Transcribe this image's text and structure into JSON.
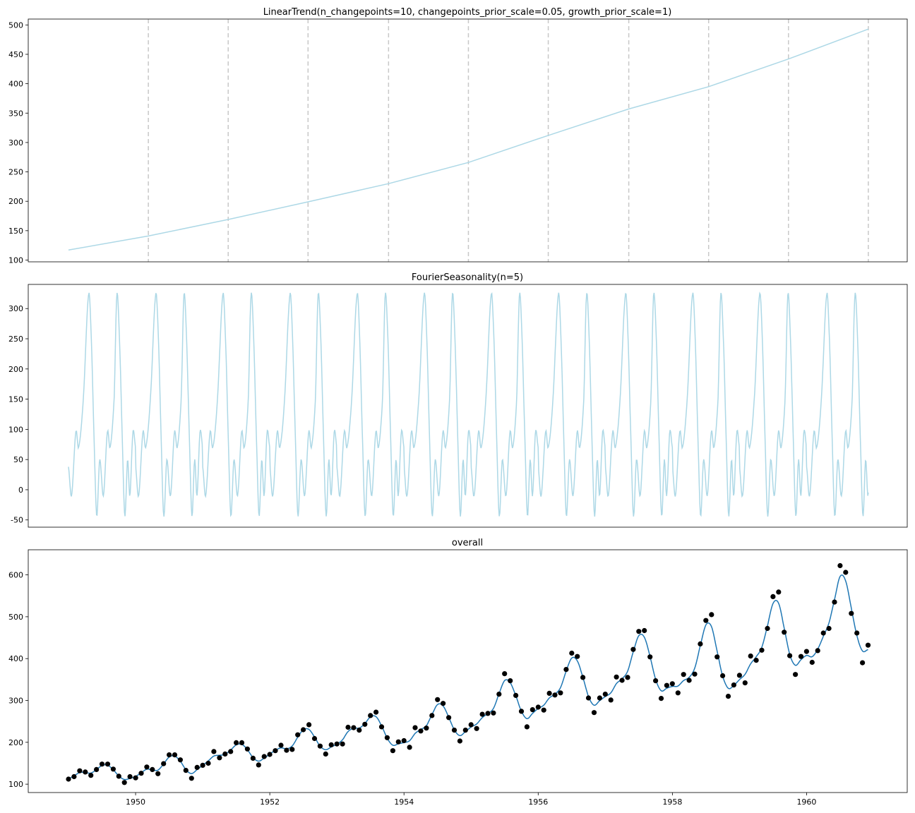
{
  "chart_data": [
    {
      "type": "line",
      "title": "LinearTrend(n_changepoints=10, changepoints_prior_scale=0.05, growth_prior_scale=1)",
      "ylim": [
        97,
        510
      ],
      "yticks": [
        100,
        150,
        200,
        250,
        300,
        350,
        400,
        450,
        500
      ],
      "xlim": [
        1948.4,
        1961.5
      ],
      "line_color": "#add8e6",
      "changepoint_color": "#c8c8c8",
      "changepoints": [
        1950.19,
        1951.38,
        1952.57,
        1953.77,
        1954.96,
        1956.15,
        1957.35,
        1958.54,
        1959.73,
        1960.92
      ],
      "series": [
        {
          "x": [
            1949.0,
            1950.19,
            1951.38,
            1952.57,
            1953.77,
            1954.96,
            1956.15,
            1957.35,
            1958.54,
            1959.73,
            1960.92
          ],
          "values": [
            117,
            141,
            169,
            199,
            230,
            266,
            312,
            357,
            395,
            442,
            493
          ]
        }
      ]
    },
    {
      "type": "line",
      "title": "FourierSeasonality(n=5)",
      "ylim": [
        -62,
        340
      ],
      "yticks": [
        -50,
        0,
        50,
        100,
        150,
        200,
        250,
        300
      ],
      "xlim": [
        1948.4,
        1961.5
      ],
      "line_color": "#add8e6",
      "period_years": 1,
      "x_start": 1949.0,
      "x_end": 1960.92,
      "cycle_profile": {
        "phase": [
          0.0,
          0.045,
          0.11,
          0.15,
          0.22,
          0.3,
          0.34,
          0.38,
          0.42,
          0.465,
          0.52,
          0.58,
          0.62,
          0.68,
          0.72,
          0.76,
          0.8,
          0.84,
          0.88,
          0.915,
          0.96,
          1.0
        ],
        "values": [
          38,
          -10,
          96,
          70,
          150,
          323,
          250,
          90,
          -44,
          50,
          -10,
          96,
          70,
          150,
          323,
          250,
          90,
          -44,
          50,
          -10,
          96,
          70
        ]
      }
    },
    {
      "type": "line",
      "title": "overall",
      "ylim": [
        80,
        660
      ],
      "yticks": [
        100,
        200,
        300,
        400,
        500,
        600
      ],
      "xlim": [
        1948.4,
        1961.5
      ],
      "xticks": [
        "1950",
        "1952",
        "1954",
        "1956",
        "1958",
        "1960"
      ],
      "xtick_values": [
        1950,
        1952,
        1954,
        1956,
        1958,
        1960
      ],
      "line_color": "#1f77b4",
      "point_color": "#000000",
      "series": [
        {
          "name": "observed",
          "x_start": 1949.0,
          "x_step": 0.08333,
          "values": [
            112,
            118,
            132,
            129,
            121,
            135,
            148,
            148,
            136,
            119,
            104,
            118,
            115,
            126,
            141,
            135,
            125,
            149,
            170,
            170,
            158,
            133,
            114,
            140,
            145,
            150,
            178,
            163,
            172,
            178,
            199,
            199,
            184,
            162,
            146,
            166,
            171,
            180,
            193,
            181,
            183,
            218,
            230,
            242,
            209,
            191,
            172,
            194,
            196,
            196,
            236,
            235,
            229,
            243,
            264,
            272,
            237,
            211,
            180,
            201,
            204,
            188,
            235,
            227,
            234,
            264,
            302,
            293,
            259,
            229,
            203,
            229,
            242,
            233,
            267,
            269,
            270,
            315,
            364,
            347,
            312,
            274,
            237,
            278,
            284,
            277,
            317,
            313,
            318,
            374,
            413,
            405,
            355,
            306,
            271,
            306,
            315,
            301,
            356,
            348,
            355,
            422,
            465,
            467,
            404,
            347,
            305,
            336,
            340,
            318,
            362,
            348,
            363,
            435,
            491,
            505,
            404,
            359,
            310,
            337,
            360,
            342,
            406,
            396,
            420,
            472,
            548,
            559,
            463,
            407,
            362,
            405,
            417,
            391,
            419,
            461,
            472,
            535,
            622,
            606,
            508,
            461,
            390,
            432
          ]
        }
      ]
    }
  ]
}
